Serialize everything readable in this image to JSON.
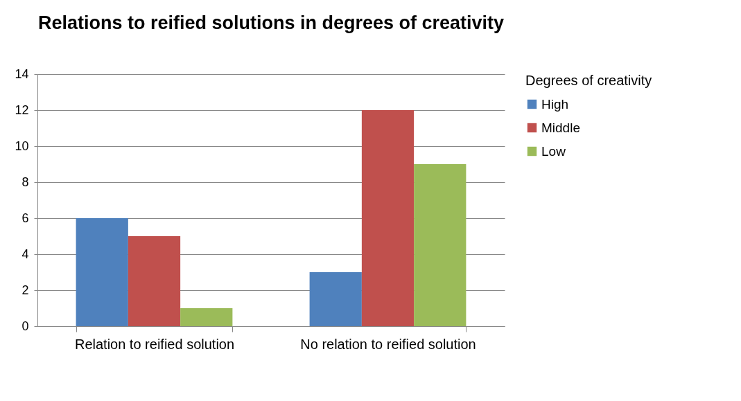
{
  "chart_data": {
    "type": "bar",
    "title": "Relations to reified solutions in degrees of creativity",
    "categories": [
      "Relation to reified solution",
      "No relation to reified solution"
    ],
    "series": [
      {
        "name": "High",
        "color": "#4f81bd",
        "values": [
          6,
          3
        ]
      },
      {
        "name": "Middle",
        "color": "#c0504d",
        "values": [
          5,
          12
        ]
      },
      {
        "name": "Low",
        "color": "#9bbb59",
        "values": [
          1,
          9
        ]
      }
    ],
    "legend_title": "Degrees of creativity",
    "ylim": [
      0,
      14
    ],
    "yticks": [
      0,
      2,
      4,
      6,
      8,
      10,
      12,
      14
    ],
    "grid": "y",
    "legend": "right"
  }
}
